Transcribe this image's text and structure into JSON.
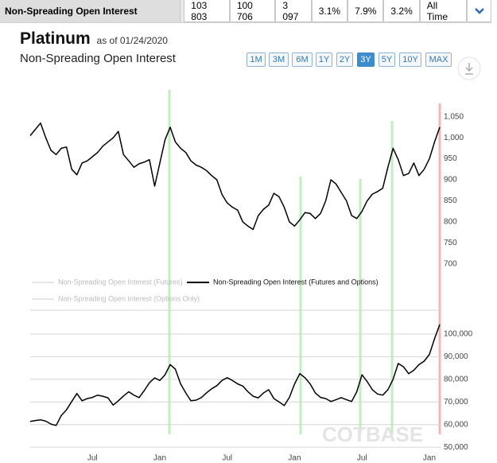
{
  "header": {
    "label": "Non-Spreading Open Interest",
    "cells": [
      "103 803",
      "100 706",
      "3 097",
      "3.1%",
      "7.9%",
      "3.2%"
    ],
    "period": "All Time"
  },
  "title": "Platinum",
  "as_of": "as of 01/24/2020",
  "subtitle": "Non-Spreading Open Interest",
  "ranges": [
    "1M",
    "3M",
    "6M",
    "1Y",
    "2Y",
    "3Y",
    "5Y",
    "10Y",
    "MAX"
  ],
  "active_range": "3Y",
  "watermark": "COTBASE",
  "chart_data": [
    {
      "type": "line",
      "color": "#000000",
      "grid": false,
      "values": [
        1005,
        1020,
        1035,
        1000,
        970,
        960,
        975,
        978,
        925,
        912,
        940,
        945,
        955,
        965,
        980,
        990,
        1000,
        1015,
        960,
        945,
        930,
        938,
        942,
        948,
        885,
        940,
        995,
        1025,
        990,
        975,
        965,
        945,
        935,
        930,
        922,
        910,
        900,
        865,
        845,
        835,
        828,
        800,
        790,
        782,
        815,
        830,
        840,
        868,
        860,
        835,
        800,
        790,
        805,
        822,
        820,
        808,
        820,
        850,
        900,
        890,
        870,
        850,
        815,
        808,
        825,
        850,
        866,
        872,
        880,
        930,
        975,
        948,
        910,
        915,
        940,
        910,
        925,
        950,
        990,
        1025
      ],
      "ylim": [
        675,
        1110
      ],
      "yticks": [
        700,
        750,
        800,
        850,
        900,
        950,
        {
          "value": 1000,
          "label": "1,000"
        },
        {
          "value": 1050,
          "label": "1,050"
        }
      ]
    },
    {
      "type": "line",
      "grid": true,
      "categories": [
        null,
        null,
        null,
        null,
        null,
        null,
        null,
        null,
        null,
        null,
        null,
        null,
        "Jul",
        null,
        null,
        null,
        null,
        null,
        null,
        null,
        null,
        null,
        null,
        null,
        null,
        "Jan",
        null,
        null,
        null,
        null,
        null,
        null,
        null,
        null,
        null,
        null,
        null,
        null,
        "Jul",
        null,
        null,
        null,
        null,
        null,
        null,
        null,
        null,
        null,
        null,
        null,
        null,
        "Jan",
        null,
        null,
        null,
        null,
        null,
        null,
        null,
        null,
        null,
        null,
        null,
        null,
        "Jul",
        null,
        null,
        null,
        null,
        null,
        null,
        null,
        null,
        null,
        null,
        null,
        null,
        "Jan",
        null,
        null
      ],
      "series": [
        {
          "name": "Non-Spreading Open Interest (Futures)",
          "color": "#cccccc",
          "visible": false
        },
        {
          "name": "Non-Spreading Open Interest (Futures and Options)",
          "color": "#000000",
          "visible": true,
          "values": [
            61400,
            61800,
            62100,
            61500,
            60200,
            59600,
            64000,
            66500,
            70200,
            73700,
            70500,
            71500,
            72000,
            73000,
            72500,
            71800,
            68600,
            70500,
            72600,
            74500,
            73000,
            71900,
            75000,
            78500,
            80600,
            79500,
            82000,
            86500,
            84500,
            78000,
            74000,
            70500,
            70800,
            71900,
            74000,
            75800,
            77200,
            79500,
            80700,
            79500,
            78000,
            77000,
            74500,
            72500,
            71800,
            74000,
            75400,
            71500,
            70000,
            68400,
            72000,
            78000,
            82500,
            80700,
            78000,
            74000,
            72000,
            71500,
            70200,
            71000,
            71900,
            71000,
            70200,
            74500,
            82000,
            79000,
            75400,
            73500,
            73000,
            75400,
            80000,
            87000,
            85500,
            82500,
            84000,
            86500,
            88000,
            91000,
            98000,
            104200
          ]
        },
        {
          "name": "Non-Spreading Open Interest (Options Only)",
          "color": "#cccccc",
          "visible": false
        }
      ],
      "ylim": [
        49000,
        110500
      ],
      "yticks": [
        {
          "value": 50000,
          "label": "50,000"
        },
        {
          "value": 60000,
          "label": "60,000"
        },
        {
          "value": 70000,
          "label": "70,000"
        },
        {
          "value": 80000,
          "label": "80,000"
        },
        {
          "value": 90000,
          "label": "90,000"
        },
        {
          "value": 100000,
          "label": "100,000"
        }
      ]
    }
  ]
}
